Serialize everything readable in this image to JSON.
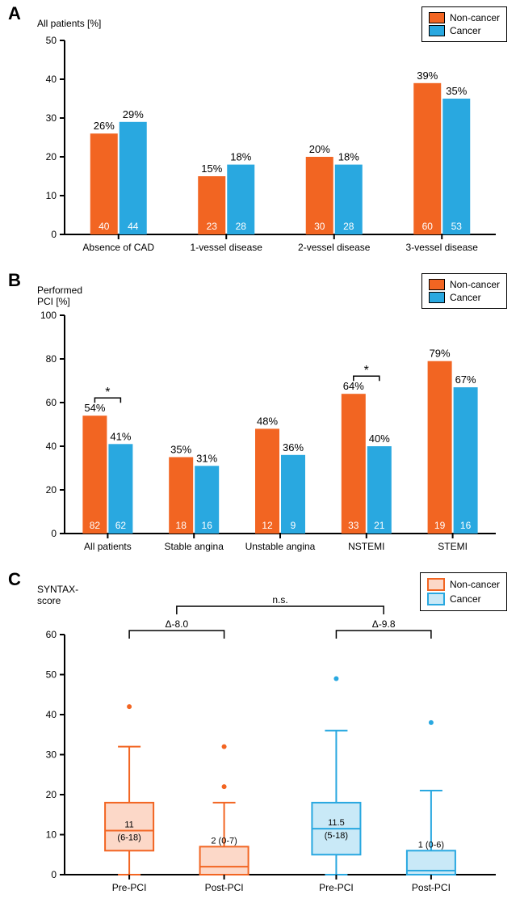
{
  "colors": {
    "noncancer": "#f26522",
    "cancer": "#29a8e0",
    "noncancer_fill_light": "#f2652240",
    "cancer_fill_light": "#29a8e040",
    "axis": "#000000",
    "text": "#000000",
    "white": "#ffffff"
  },
  "panelA": {
    "label": "A",
    "ytitle": "All patients [%]",
    "ylim": [
      0,
      50
    ],
    "ytick_step": 10,
    "categories": [
      "Absence of CAD",
      "1-vessel disease",
      "2-vessel disease",
      "3-vessel disease"
    ],
    "series": [
      {
        "name": "Non-cancer",
        "pct": [
          26,
          15,
          20,
          39
        ],
        "n": [
          40,
          23,
          30,
          60
        ]
      },
      {
        "name": "Cancer",
        "pct": [
          29,
          18,
          18,
          35
        ],
        "n": [
          44,
          28,
          28,
          53
        ]
      }
    ],
    "legend": [
      "Non-cancer",
      "Cancer"
    ],
    "bar_label_fontsize": 13,
    "n_label_fontsize": 12,
    "axis_fontsize": 12
  },
  "panelB": {
    "label": "B",
    "ytitle": "Performed\nPCI [%]",
    "ylim": [
      0,
      100
    ],
    "ytick_step": 20,
    "categories": [
      "All patients",
      "Stable angina",
      "Unstable angina",
      "NSTEMI",
      "STEMI"
    ],
    "series": [
      {
        "name": "Non-cancer",
        "pct": [
          54,
          35,
          48,
          64,
          79
        ],
        "n": [
          82,
          18,
          12,
          33,
          19
        ]
      },
      {
        "name": "Cancer",
        "pct": [
          41,
          31,
          36,
          40,
          67
        ],
        "n": [
          62,
          16,
          9,
          21,
          16
        ]
      }
    ],
    "sig_markers": [
      {
        "groups": [
          0
        ],
        "label": "*"
      },
      {
        "groups": [
          3
        ],
        "label": "*"
      }
    ],
    "legend": [
      "Non-cancer",
      "Cancer"
    ],
    "bar_label_fontsize": 13,
    "n_label_fontsize": 12,
    "axis_fontsize": 12
  },
  "panelC": {
    "label": "C",
    "ytitle": "SYNTAX-\nscore",
    "ylim": [
      0,
      60
    ],
    "ytick_step": 10,
    "categories": [
      "Pre-PCI",
      "Post-PCI",
      "Pre-PCI",
      "Post-PCI"
    ],
    "group_colors": [
      "noncancer",
      "noncancer",
      "cancer",
      "cancer"
    ],
    "boxes": [
      {
        "median": 11,
        "iqr_text": "(6-18)",
        "q1": 6,
        "q3": 18,
        "whisker_low": 0,
        "whisker_high": 32,
        "outliers": [
          42
        ]
      },
      {
        "median": 2,
        "iqr_text": "(0-7)",
        "q1": 0,
        "q3": 7,
        "whisker_low": 0,
        "whisker_high": 18,
        "outliers": [
          22,
          32
        ]
      },
      {
        "median": 11.5,
        "iqr_text": "(5-18)",
        "q1": 5,
        "q3": 18,
        "whisker_low": 0,
        "whisker_high": 36,
        "outliers": [
          49
        ]
      },
      {
        "median": 1,
        "iqr_text": "(0-6)",
        "q1": 0,
        "q3": 6,
        "whisker_low": 0,
        "whisker_high": 21,
        "outliers": [
          38
        ]
      }
    ],
    "delta_labels": [
      "Δ-8.0",
      "Δ-9.8"
    ],
    "ns_label": "n.s.",
    "legend": [
      "Non-cancer",
      "Cancer"
    ],
    "box_label_fontsize": 11,
    "axis_fontsize": 12
  }
}
